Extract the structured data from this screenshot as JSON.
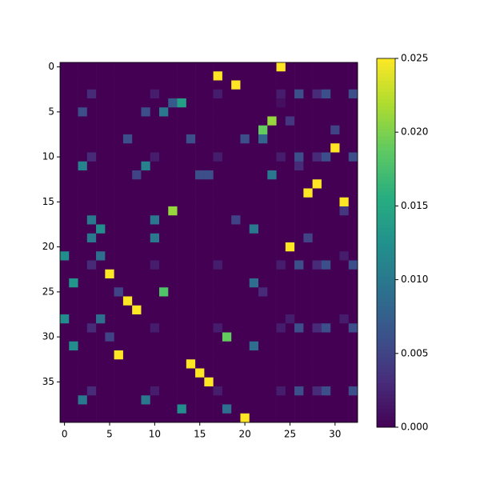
{
  "chart_data": {
    "type": "heatmap",
    "colormap": "viridis",
    "xlim": [
      -0.5,
      32.5
    ],
    "ylim": [
      39.5,
      -0.5
    ],
    "xticks": [
      0,
      5,
      10,
      15,
      20,
      25,
      30
    ],
    "yticks": [
      0,
      5,
      10,
      15,
      20,
      25,
      30,
      35
    ],
    "clim": [
      0,
      0.025
    ],
    "cticks": [
      {
        "value": 0,
        "label": "0.000"
      },
      {
        "value": 0.005,
        "label": "0.005"
      },
      {
        "value": 0.01,
        "label": "0.010"
      },
      {
        "value": 0.015,
        "label": "0.015"
      },
      {
        "value": 0.02,
        "label": "0.020"
      },
      {
        "value": 0.025,
        "label": "0.025"
      }
    ],
    "values": [
      [
        0,
        0,
        0,
        0,
        0,
        0,
        0,
        0,
        0,
        0,
        0,
        0,
        0,
        0,
        0,
        0,
        0,
        0,
        0,
        0,
        0,
        0,
        0,
        0,
        0.025,
        0,
        0,
        0,
        0,
        0,
        0,
        0,
        0
      ],
      [
        0,
        0,
        0,
        0,
        0,
        0,
        0,
        0,
        0,
        0,
        0,
        0,
        0,
        0,
        0,
        0,
        0,
        0.025,
        0,
        0,
        0,
        0,
        0,
        0,
        0,
        0,
        0,
        0,
        0,
        0,
        0,
        0,
        0
      ],
      [
        0,
        0,
        0,
        0,
        0,
        0,
        0,
        0,
        0,
        0,
        0,
        0,
        0,
        0,
        0,
        0,
        0,
        0,
        0,
        0.025,
        0,
        0,
        0,
        0,
        0,
        0,
        0,
        0,
        0,
        0,
        0,
        0,
        0
      ],
      [
        0,
        0,
        0,
        0.003,
        0,
        0,
        0,
        0,
        0,
        0,
        0.002,
        0,
        0,
        0,
        0,
        0,
        0,
        0.002,
        0,
        0,
        0,
        0,
        0,
        0,
        0.002,
        0,
        0.006,
        0,
        0.003,
        0.006,
        0,
        0,
        0.006
      ],
      [
        0,
        0,
        0,
        0,
        0,
        0,
        0,
        0,
        0,
        0,
        0,
        0,
        0.007,
        0.014,
        0,
        0,
        0,
        0,
        0,
        0,
        0,
        0,
        0,
        0,
        0.001,
        0,
        0,
        0,
        0,
        0,
        0,
        0,
        0
      ],
      [
        0,
        0,
        0.006,
        0,
        0,
        0,
        0,
        0,
        0,
        0.006,
        0,
        0.01,
        0,
        0,
        0,
        0,
        0,
        0,
        0,
        0,
        0,
        0,
        0,
        0,
        0,
        0,
        0,
        0,
        0,
        0,
        0,
        0,
        0
      ],
      [
        0,
        0,
        0,
        0,
        0,
        0,
        0,
        0,
        0,
        0,
        0,
        0,
        0,
        0,
        0,
        0,
        0,
        0,
        0,
        0,
        0,
        0,
        0,
        0.021,
        0,
        0.004,
        0,
        0,
        0,
        0,
        0,
        0,
        0
      ],
      [
        0,
        0,
        0,
        0,
        0,
        0,
        0,
        0,
        0,
        0,
        0,
        0,
        0,
        0,
        0,
        0,
        0,
        0,
        0,
        0,
        0,
        0,
        0.019,
        0,
        0,
        0,
        0,
        0,
        0,
        0,
        0.005,
        0,
        0
      ],
      [
        0,
        0,
        0,
        0,
        0,
        0,
        0,
        0.006,
        0,
        0,
        0,
        0,
        0,
        0,
        0.006,
        0,
        0,
        0,
        0,
        0,
        0.006,
        0,
        0.008,
        0,
        0,
        0,
        0,
        0,
        0,
        0,
        0,
        0,
        0
      ],
      [
        0,
        0,
        0,
        0,
        0,
        0,
        0,
        0,
        0,
        0,
        0,
        0,
        0,
        0,
        0,
        0,
        0,
        0,
        0,
        0,
        0,
        0,
        0,
        0,
        0,
        0,
        0,
        0,
        0,
        0,
        0.025,
        0,
        0
      ],
      [
        0,
        0,
        0,
        0.003,
        0,
        0,
        0,
        0,
        0,
        0,
        0.002,
        0,
        0,
        0,
        0,
        0,
        0,
        0.002,
        0,
        0,
        0,
        0,
        0,
        0,
        0.002,
        0,
        0.006,
        0,
        0.003,
        0.006,
        0,
        0,
        0.006
      ],
      [
        0,
        0,
        0.011,
        0,
        0,
        0,
        0,
        0,
        0,
        0.011,
        0,
        0,
        0,
        0,
        0,
        0,
        0,
        0,
        0,
        0,
        0,
        0,
        0,
        0,
        0,
        0,
        0.003,
        0,
        0,
        0,
        0,
        0,
        0
      ],
      [
        0,
        0,
        0,
        0,
        0,
        0,
        0,
        0,
        0.005,
        0,
        0,
        0,
        0,
        0,
        0,
        0.006,
        0.006,
        0,
        0,
        0,
        0,
        0,
        0,
        0.01,
        0,
        0,
        0,
        0,
        0,
        0,
        0,
        0,
        0
      ],
      [
        0,
        0,
        0,
        0,
        0,
        0,
        0,
        0,
        0,
        0,
        0,
        0,
        0,
        0,
        0,
        0,
        0,
        0,
        0,
        0,
        0,
        0,
        0,
        0,
        0,
        0,
        0,
        0,
        0.025,
        0,
        0,
        0,
        0
      ],
      [
        0,
        0,
        0,
        0,
        0,
        0,
        0,
        0,
        0,
        0,
        0,
        0,
        0,
        0,
        0,
        0,
        0,
        0,
        0,
        0,
        0,
        0,
        0,
        0,
        0,
        0,
        0,
        0.025,
        0,
        0,
        0,
        0,
        0
      ],
      [
        0,
        0,
        0,
        0,
        0,
        0,
        0,
        0,
        0,
        0,
        0,
        0,
        0,
        0,
        0,
        0,
        0,
        0,
        0,
        0,
        0,
        0,
        0,
        0,
        0,
        0,
        0,
        0,
        0,
        0,
        0,
        0.025,
        0
      ],
      [
        0,
        0,
        0,
        0,
        0,
        0,
        0,
        0,
        0,
        0,
        0,
        0,
        0.021,
        0,
        0,
        0,
        0,
        0,
        0,
        0,
        0,
        0,
        0,
        0,
        0,
        0,
        0,
        0,
        0,
        0,
        0,
        0.004,
        0
      ],
      [
        0,
        0,
        0,
        0.01,
        0,
        0,
        0,
        0,
        0,
        0,
        0.01,
        0,
        0,
        0,
        0,
        0,
        0,
        0,
        0,
        0.005,
        0,
        0,
        0,
        0,
        0,
        0,
        0,
        0,
        0,
        0,
        0,
        0,
        0
      ],
      [
        0,
        0,
        0,
        0,
        0.012,
        0,
        0,
        0,
        0,
        0,
        0,
        0,
        0,
        0,
        0,
        0,
        0,
        0,
        0,
        0,
        0,
        0.01,
        0,
        0,
        0,
        0,
        0,
        0,
        0,
        0,
        0,
        0,
        0
      ],
      [
        0,
        0,
        0,
        0.01,
        0,
        0,
        0,
        0,
        0,
        0,
        0.01,
        0,
        0,
        0,
        0,
        0,
        0,
        0,
        0,
        0,
        0,
        0,
        0,
        0,
        0,
        0,
        0,
        0.005,
        0,
        0,
        0,
        0,
        0
      ],
      [
        0,
        0,
        0,
        0,
        0,
        0,
        0,
        0,
        0,
        0,
        0,
        0,
        0,
        0,
        0,
        0,
        0,
        0,
        0,
        0,
        0,
        0,
        0,
        0,
        0,
        0.025,
        0,
        0,
        0,
        0,
        0,
        0,
        0
      ],
      [
        0.012,
        0,
        0,
        0,
        0.009,
        0,
        0,
        0,
        0,
        0,
        0,
        0,
        0,
        0,
        0,
        0,
        0,
        0,
        0,
        0,
        0,
        0,
        0,
        0,
        0,
        0,
        0,
        0,
        0,
        0,
        0,
        0.002,
        0
      ],
      [
        0,
        0,
        0,
        0.003,
        0,
        0,
        0,
        0,
        0,
        0,
        0.002,
        0,
        0,
        0,
        0,
        0,
        0,
        0.002,
        0,
        0,
        0,
        0,
        0,
        0,
        0.002,
        0,
        0.006,
        0,
        0.003,
        0.006,
        0,
        0,
        0.006
      ],
      [
        0,
        0,
        0,
        0,
        0,
        0.025,
        0,
        0,
        0,
        0,
        0,
        0,
        0,
        0,
        0,
        0,
        0,
        0,
        0,
        0,
        0,
        0,
        0,
        0,
        0,
        0,
        0,
        0,
        0,
        0,
        0,
        0,
        0
      ],
      [
        0,
        0.013,
        0,
        0,
        0,
        0,
        0,
        0,
        0,
        0,
        0,
        0,
        0,
        0,
        0,
        0,
        0,
        0,
        0,
        0,
        0,
        0.009,
        0,
        0,
        0,
        0,
        0,
        0,
        0,
        0,
        0,
        0,
        0
      ],
      [
        0,
        0,
        0,
        0,
        0,
        0,
        0.005,
        0,
        0,
        0,
        0,
        0.018,
        0,
        0,
        0,
        0,
        0,
        0,
        0,
        0,
        0,
        0,
        0.003,
        0,
        0,
        0,
        0,
        0,
        0,
        0,
        0,
        0,
        0
      ],
      [
        0,
        0,
        0,
        0,
        0,
        0,
        0,
        0.025,
        0,
        0,
        0,
        0,
        0,
        0,
        0,
        0,
        0,
        0,
        0,
        0,
        0,
        0,
        0,
        0,
        0,
        0,
        0,
        0,
        0,
        0,
        0,
        0,
        0
      ],
      [
        0,
        0,
        0,
        0,
        0,
        0,
        0,
        0,
        0.025,
        0,
        0,
        0,
        0,
        0,
        0,
        0,
        0,
        0,
        0,
        0,
        0,
        0,
        0,
        0,
        0,
        0,
        0,
        0,
        0,
        0,
        0,
        0,
        0
      ],
      [
        0.012,
        0,
        0,
        0,
        0.009,
        0,
        0,
        0,
        0,
        0,
        0,
        0,
        0,
        0,
        0,
        0,
        0,
        0,
        0,
        0,
        0,
        0,
        0,
        0,
        0,
        0.002,
        0,
        0,
        0,
        0,
        0,
        0.002,
        0
      ],
      [
        0,
        0,
        0,
        0.003,
        0,
        0,
        0,
        0,
        0,
        0,
        0.002,
        0,
        0,
        0,
        0,
        0,
        0,
        0.002,
        0,
        0,
        0,
        0,
        0,
        0,
        0.002,
        0,
        0.006,
        0,
        0.003,
        0.006,
        0,
        0,
        0.006
      ],
      [
        0,
        0,
        0,
        0,
        0,
        0.005,
        0,
        0,
        0,
        0,
        0,
        0,
        0,
        0,
        0,
        0,
        0,
        0,
        0.019,
        0,
        0,
        0,
        0,
        0,
        0,
        0,
        0,
        0,
        0,
        0,
        0,
        0,
        0
      ],
      [
        0,
        0.012,
        0,
        0,
        0,
        0,
        0,
        0,
        0,
        0,
        0,
        0,
        0,
        0,
        0,
        0,
        0,
        0,
        0,
        0,
        0,
        0.009,
        0,
        0,
        0,
        0,
        0,
        0,
        0,
        0,
        0,
        0,
        0
      ],
      [
        0,
        0,
        0,
        0,
        0,
        0,
        0.025,
        0,
        0,
        0,
        0,
        0,
        0,
        0,
        0,
        0,
        0,
        0,
        0,
        0,
        0,
        0,
        0,
        0,
        0,
        0,
        0,
        0,
        0,
        0,
        0,
        0,
        0
      ],
      [
        0,
        0,
        0,
        0,
        0,
        0,
        0,
        0,
        0,
        0,
        0,
        0,
        0,
        0,
        0.025,
        0,
        0,
        0,
        0,
        0,
        0,
        0,
        0,
        0,
        0,
        0,
        0,
        0,
        0,
        0,
        0,
        0,
        0
      ],
      [
        0,
        0,
        0,
        0,
        0,
        0,
        0,
        0,
        0,
        0,
        0,
        0,
        0,
        0,
        0,
        0.025,
        0,
        0,
        0,
        0,
        0,
        0,
        0,
        0,
        0,
        0,
        0,
        0,
        0,
        0,
        0,
        0,
        0
      ],
      [
        0,
        0,
        0,
        0,
        0,
        0,
        0,
        0,
        0,
        0,
        0,
        0,
        0,
        0,
        0,
        0,
        0.025,
        0,
        0,
        0,
        0,
        0,
        0,
        0,
        0,
        0,
        0,
        0,
        0,
        0,
        0,
        0,
        0
      ],
      [
        0,
        0,
        0,
        0.003,
        0,
        0,
        0,
        0,
        0,
        0,
        0.002,
        0,
        0,
        0,
        0,
        0,
        0,
        0.002,
        0,
        0,
        0,
        0,
        0,
        0,
        0.002,
        0,
        0.006,
        0,
        0.003,
        0.006,
        0,
        0,
        0.006
      ],
      [
        0,
        0,
        0.01,
        0,
        0,
        0,
        0,
        0,
        0,
        0.01,
        0,
        0,
        0,
        0,
        0,
        0,
        0,
        0,
        0,
        0,
        0,
        0,
        0,
        0,
        0,
        0,
        0,
        0,
        0,
        0,
        0,
        0,
        0
      ],
      [
        0,
        0,
        0,
        0,
        0,
        0,
        0,
        0,
        0,
        0,
        0,
        0,
        0,
        0.012,
        0,
        0,
        0,
        0,
        0.009,
        0,
        0,
        0,
        0,
        0,
        0,
        0,
        0,
        0,
        0,
        0,
        0,
        0,
        0
      ],
      [
        0,
        0,
        0,
        0,
        0,
        0,
        0,
        0,
        0,
        0,
        0,
        0,
        0,
        0,
        0,
        0,
        0,
        0,
        0,
        0,
        0.025,
        0,
        0,
        0,
        0,
        0,
        0,
        0,
        0,
        0,
        0,
        0,
        0
      ]
    ]
  }
}
